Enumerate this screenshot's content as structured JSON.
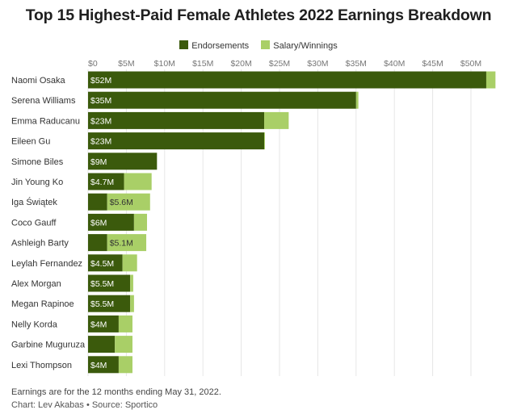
{
  "colors": {
    "endorsements": "#3b5a0c",
    "salary": "#a9cf67"
  },
  "chart_data": {
    "type": "bar",
    "orientation": "horizontal",
    "stacked": true,
    "title": "Top 15 Highest-Paid Female Athletes 2022 Earnings Breakdown",
    "legend_position": "top",
    "xlim": [
      0,
      55
    ],
    "x_ticks": [
      "$0",
      "$5M",
      "$10M",
      "$15M",
      "$20M",
      "$25M",
      "$30M",
      "$35M",
      "$40M",
      "$45M",
      "$50M"
    ],
    "categories": [
      "Naomi Osaka",
      "Serena Williams",
      "Emma Raducanu",
      "Eileen Gu",
      "Simone Biles",
      "Jin Young Ko",
      "Iga Świątek",
      "Coco Gauff",
      "Ashleigh Barty",
      "Leylah Fernandez",
      "Alex Morgan",
      "Megan Rapinoe",
      "Nelly Korda",
      "Garbine Muguruza",
      "Lexi Thompson"
    ],
    "series": [
      {
        "name": "Endorsements",
        "color": "#3b5a0c",
        "values": [
          52,
          35,
          23,
          23,
          9,
          4.7,
          2.5,
          6,
          2.5,
          4.5,
          5.5,
          5.5,
          4,
          3.5,
          4
        ],
        "labels": [
          "$52M",
          "$35M",
          "$23M",
          "$23M",
          "$9M",
          "$4.7M",
          "",
          "$6M",
          "",
          "$4.5M",
          "$5.5M",
          "$5.5M",
          "$4M",
          "",
          "$4M"
        ]
      },
      {
        "name": "Salary/Winnings",
        "color": "#a9cf67",
        "values": [
          1.2,
          0.3,
          3.2,
          0.1,
          0,
          3.6,
          5.6,
          1.7,
          5.1,
          1.9,
          0.4,
          0.5,
          1.8,
          2.3,
          1.8
        ],
        "labels": [
          "",
          "",
          "",
          "",
          "",
          "",
          "$5.6M",
          "",
          "$5.1M",
          "",
          "",
          "",
          "",
          "",
          ""
        ]
      }
    ]
  },
  "footer": {
    "note": "Earnings are for the 12 months ending May 31, 2022.",
    "source": "Chart: Lev Akabas • Source: Sportico"
  }
}
